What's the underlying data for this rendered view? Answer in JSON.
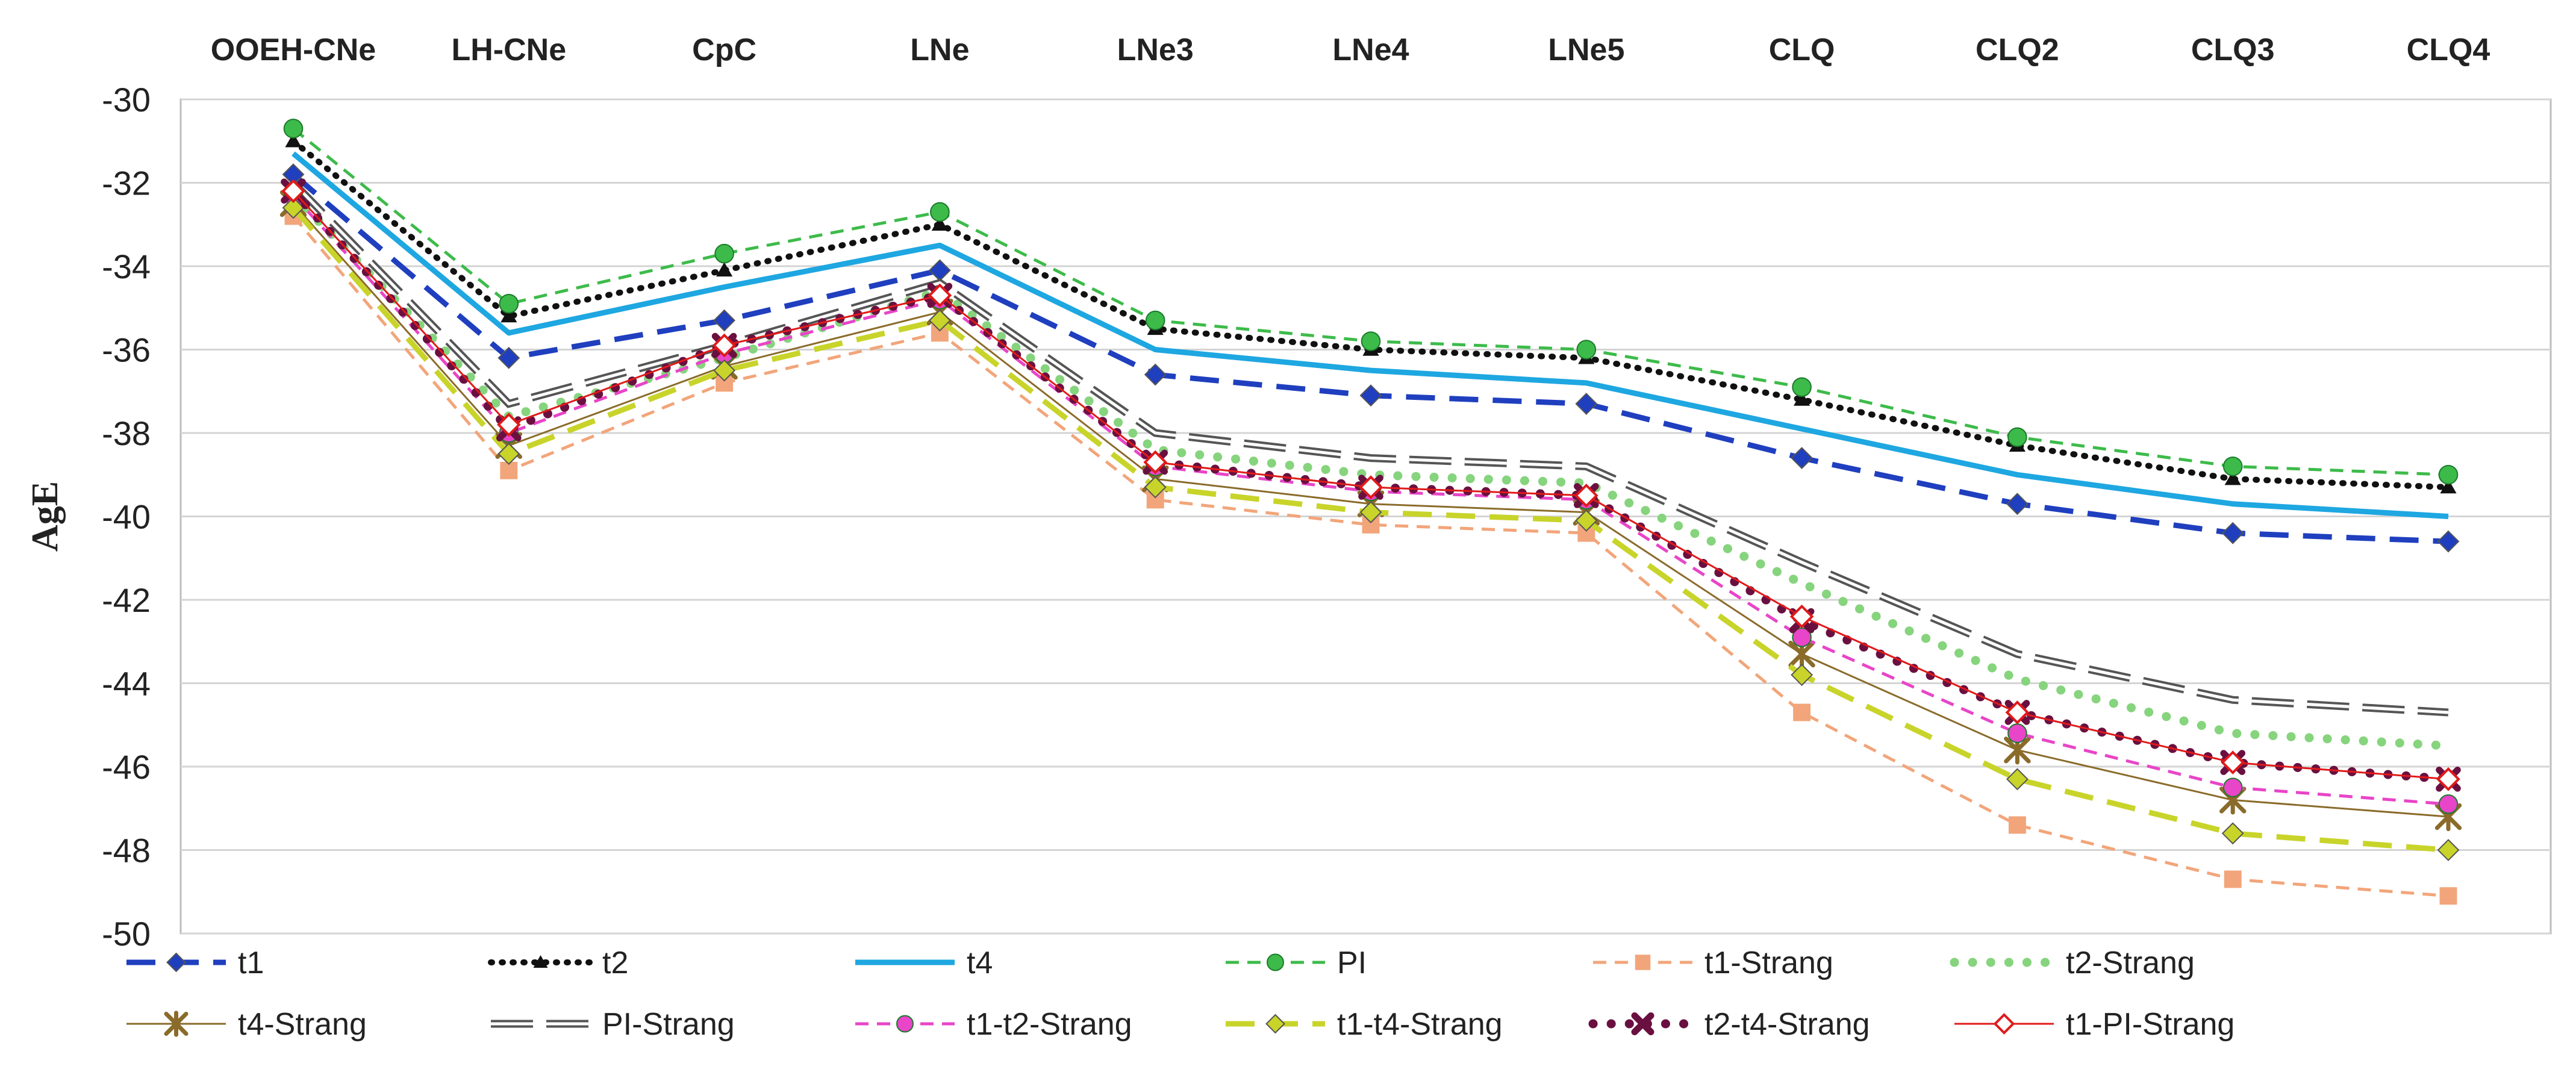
{
  "chart_data": {
    "type": "line",
    "ylabel": "AgE",
    "xlabel": "",
    "ylim": [
      -50,
      -30
    ],
    "yticks": [
      -30,
      -32,
      -34,
      -36,
      -38,
      -40,
      -42,
      -44,
      -46,
      -48,
      -50
    ],
    "grid": "horizontal",
    "legend_position": "bottom",
    "categories": [
      "OOEH-CNe",
      "LH-CNe",
      "CpC",
      "LNe",
      "LNe3",
      "LNe4",
      "LNe5",
      "CLQ",
      "CLQ2",
      "CLQ3",
      "CLQ4"
    ],
    "series": [
      {
        "name": "t1",
        "color": "#1f3fbf",
        "dash": "long",
        "marker": "diamond",
        "values": [
          -31.8,
          -36.2,
          -35.3,
          -34.1,
          -36.6,
          -37.1,
          -37.3,
          -38.6,
          -39.7,
          -40.4,
          -40.6
        ]
      },
      {
        "name": "t2",
        "color": "#111111",
        "dash": "dot",
        "marker": "triangle",
        "values": [
          -31.0,
          -35.2,
          -34.1,
          -33.0,
          -35.5,
          -36.0,
          -36.2,
          -37.2,
          -38.3,
          -39.1,
          -39.3
        ]
      },
      {
        "name": "t4",
        "color": "#1ea7e1",
        "dash": "solid",
        "marker": "none",
        "values": [
          -31.3,
          -35.6,
          -34.5,
          -33.5,
          -36.0,
          -36.5,
          -36.8,
          -37.9,
          -39.0,
          -39.7,
          -40.0
        ]
      },
      {
        "name": "PI",
        "color": "#3dbb4a",
        "dash": "dash",
        "marker": "circle",
        "values": [
          -30.7,
          -34.9,
          -33.7,
          -32.7,
          -35.3,
          -35.8,
          -36.0,
          -36.9,
          -38.1,
          -38.8,
          -39.0
        ]
      },
      {
        "name": "t1-Strang",
        "color": "#f2a57a",
        "dash": "dash",
        "marker": "square",
        "values": [
          -32.8,
          -38.9,
          -36.8,
          -35.6,
          -39.6,
          -40.2,
          -40.4,
          -44.7,
          -47.4,
          -48.7,
          -49.1
        ]
      },
      {
        "name": "t2-Strang",
        "color": "#86d47d",
        "dash": "bigdot",
        "marker": "none",
        "values": [
          -32.3,
          -37.6,
          -36.2,
          -34.6,
          -38.4,
          -39.0,
          -39.2,
          -41.6,
          -43.9,
          -45.2,
          -45.5
        ]
      },
      {
        "name": "t4-Strang",
        "color": "#8a6b2a",
        "dash": "solid-thin",
        "marker": "asterisk",
        "values": [
          -32.5,
          -38.3,
          -36.4,
          -35.1,
          -39.1,
          -39.7,
          -39.9,
          -43.3,
          -45.6,
          -46.8,
          -47.2
        ]
      },
      {
        "name": "PI-Strang",
        "color": "#555555",
        "dash": "double-long",
        "marker": "none",
        "values": [
          -32.0,
          -37.3,
          -35.9,
          -34.4,
          -38.0,
          -38.6,
          -38.8,
          -41.1,
          -43.3,
          -44.4,
          -44.7
        ]
      },
      {
        "name": "t1-t2-Strang",
        "color": "#e845c8",
        "dash": "dash",
        "marker": "circle",
        "values": [
          -32.3,
          -38.0,
          -36.1,
          -34.8,
          -38.8,
          -39.4,
          -39.6,
          -42.9,
          -45.2,
          -46.5,
          -46.9
        ]
      },
      {
        "name": "t1-t4-Strang",
        "color": "#c8d42a",
        "dash": "long",
        "marker": "diamond",
        "values": [
          -32.6,
          -38.5,
          -36.5,
          -35.3,
          -39.3,
          -39.9,
          -40.1,
          -43.8,
          -46.3,
          -47.6,
          -48.0
        ]
      },
      {
        "name": "t2-t4-Strang",
        "color": "#6a1040",
        "dash": "bigdot",
        "marker": "x",
        "values": [
          -32.2,
          -37.9,
          -35.9,
          -34.7,
          -38.7,
          -39.3,
          -39.5,
          -42.5,
          -44.7,
          -45.9,
          -46.3
        ]
      },
      {
        "name": "t1-PI-Strang",
        "color": "#e01a1a",
        "dash": "solid-thin",
        "marker": "open-diamond",
        "values": [
          -32.2,
          -37.8,
          -35.9,
          -34.7,
          -38.7,
          -39.3,
          -39.5,
          -42.4,
          -44.7,
          -45.9,
          -46.3
        ]
      }
    ]
  }
}
